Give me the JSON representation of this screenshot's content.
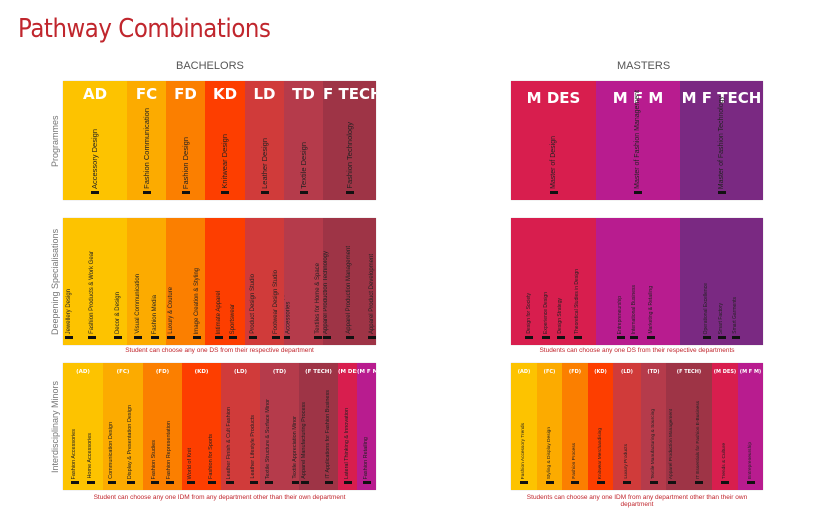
{
  "title": "Pathway Combinations",
  "bachelors_label": "BACHELORS",
  "masters_label": "MASTERS",
  "row_labels": {
    "programmes": "Programmes",
    "ds": "Deepening  Specialisations",
    "idm": "Interdisciplinary  Minors"
  },
  "colors": {
    "AD": "#fdc300",
    "FC": "#fcab00",
    "FD": "#fb7f00",
    "KD": "#fd3e00",
    "LD": "#d03b3a",
    "TD": "#b53b4b",
    "FTECH": "#9e3446",
    "MDES": "#d81e4e",
    "MFM": "#b81c8f",
    "MFTECH": "#7a2982",
    "title": "#c0262d"
  },
  "bachelors": {
    "programmes": [
      {
        "code": "AD",
        "items": [
          "Accessory Design"
        ]
      },
      {
        "code": "FC",
        "items": [
          "Fashion Communication"
        ]
      },
      {
        "code": "FD",
        "items": [
          "Fashion Design"
        ]
      },
      {
        "code": "KD",
        "items": [
          "Knitwear Design"
        ]
      },
      {
        "code": "LD",
        "items": [
          "Leather Design"
        ]
      },
      {
        "code": "TD",
        "items": [
          "Textile Design"
        ]
      },
      {
        "code": "F TECH",
        "items": [
          "Fashion Technology"
        ]
      }
    ],
    "ds": [
      {
        "code": "",
        "items": [
          "Jewellery Design",
          "Fashion Products & Work Gear",
          "Decor & Design"
        ]
      },
      {
        "code": "",
        "items": [
          "Visual Communication",
          "Fashion Media"
        ]
      },
      {
        "code": "",
        "items": [
          "Luxury & Couture",
          "Image Creation & Styling"
        ]
      },
      {
        "code": "",
        "items": [
          "Intimate Apparel",
          "Sportswear"
        ]
      },
      {
        "code": "",
        "items": [
          "Product Design Studio",
          "Footwear Design Studio"
        ]
      },
      {
        "code": "",
        "items": [
          "Textiles for Apparel & Fashion Accessories",
          "Textiles for Home & Space"
        ]
      },
      {
        "code": "",
        "items": [
          "Apparel Production Technology",
          "Apparel Production Management",
          "Apparel Product Development"
        ]
      }
    ],
    "ds_note": "Student can choose any one DS from their respective department",
    "idm": [
      {
        "code": "(AD)",
        "items": [
          "Fashion Accessories",
          "Home Accessories"
        ]
      },
      {
        "code": "(FC)",
        "items": [
          "Communication Design",
          "Display & Presentation Design"
        ]
      },
      {
        "code": "(FD)",
        "items": [
          "Fashion Studies",
          "Fashion Representation"
        ]
      },
      {
        "code": "(KD)",
        "items": [
          "World of Knit",
          "Fashion for Sports"
        ]
      },
      {
        "code": "(LD)",
        "items": [
          "Leather Finish & Cult Fashion",
          "Leather Lifestyle Products"
        ]
      },
      {
        "code": "(TD)",
        "items": [
          "Textile Structure & Surface Minor",
          "Textile Appreciation Minor"
        ]
      },
      {
        "code": "(F TECH)",
        "items": [
          "Apparel Manufacturing Process",
          "IT Applications for Fashion Business"
        ]
      },
      {
        "code": "(M DES)",
        "items": [
          "Lateral Thinking & Innovation"
        ]
      },
      {
        "code": "(M F M)",
        "items": [
          "Fashion Retailing"
        ]
      }
    ],
    "idm_note": "Student can choose any one IDM from any department other than their own department"
  },
  "masters": {
    "programmes": [
      {
        "code": "M DES",
        "items": [
          "Master of Design"
        ]
      },
      {
        "code": "M F M",
        "items": [
          "Master of Fashion Management"
        ]
      },
      {
        "code": "M F TECH",
        "items": [
          "Master of Fashion Technology"
        ]
      }
    ],
    "ds": [
      {
        "code": "",
        "items": [
          "Design for Society",
          "Experience Design",
          "Design Strategy",
          "Theoretical Studies in Design"
        ]
      },
      {
        "code": "",
        "items": [
          "Entrepreneurship",
          "International Business",
          "Marketing & Retailing"
        ]
      },
      {
        "code": "",
        "items": [
          "Operational Excellence",
          "Smart Factory",
          "Smart Garments"
        ]
      }
    ],
    "ds_note": "Students can choose any one DS from their respective departments",
    "idm": [
      {
        "code": "(AD)",
        "items": [
          "Fashion Accessory Trends"
        ]
      },
      {
        "code": "(FC)",
        "items": [
          "Styling & Display Design"
        ]
      },
      {
        "code": "(FD)",
        "items": [
          "Fashion Process"
        ]
      },
      {
        "code": "(KD)",
        "items": [
          "Knitwear Merchandising"
        ]
      },
      {
        "code": "(LD)",
        "items": [
          "Luxury Products"
        ]
      },
      {
        "code": "(TD)",
        "items": [
          "Textile Manufacturing & Sourcing"
        ]
      },
      {
        "code": "(F TECH)",
        "items": [
          "Apparel Production Management",
          "IT Essentials for Fashion E-Business"
        ]
      },
      {
        "code": "(M DES)",
        "items": [
          "Trends & Culture"
        ]
      },
      {
        "code": "(M F M)",
        "items": [
          "Entrepreneurship"
        ]
      }
    ],
    "idm_note": "Students can choose any one IDM from any department other than their own department"
  }
}
